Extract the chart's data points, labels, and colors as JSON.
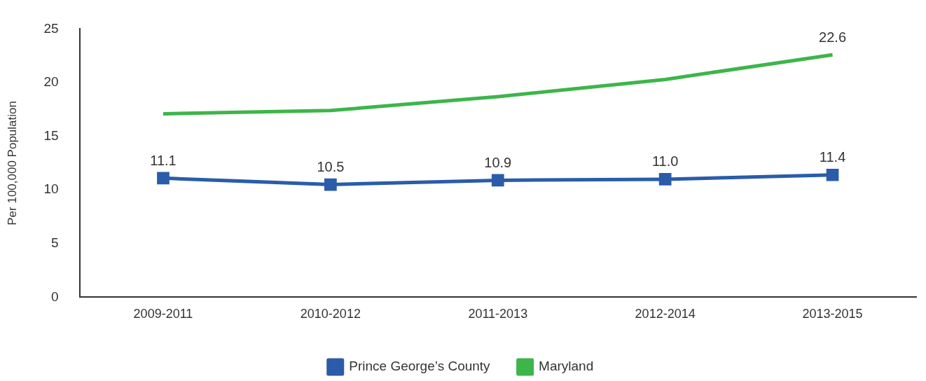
{
  "chart_data": {
    "type": "line",
    "ylabel": "Per 100,000 Population",
    "categories": [
      "2009-2011",
      "2010-2012",
      "2011-2013",
      "2012-2014",
      "2013-2015"
    ],
    "series": [
      {
        "name": "Prince George’s County",
        "color": "#2a5caa",
        "values": [
          11.1,
          10.5,
          10.9,
          11.0,
          11.4
        ],
        "value_labels": [
          "11.1",
          "10.5",
          "10.9",
          "11.0",
          "11.4"
        ]
      },
      {
        "name": "Maryland",
        "color": "#3db54a",
        "marker": "none",
        "values": [
          17.1,
          17.4,
          18.7,
          20.3,
          22.6
        ],
        "value_labels": [
          null,
          null,
          null,
          null,
          "22.6"
        ]
      }
    ],
    "ylim": [
      0,
      25
    ],
    "yticks": [
      0,
      5,
      10,
      15,
      20,
      25
    ],
    "grid": false,
    "legend": "bottom",
    "marker": "square",
    "line_style": "solid"
  }
}
